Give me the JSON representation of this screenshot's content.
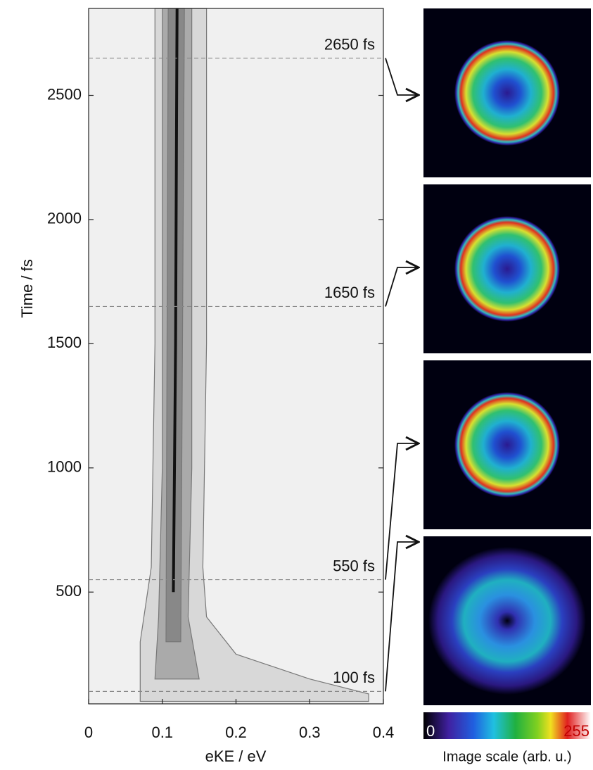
{
  "chart_data": {
    "type": "contour",
    "xlabel": "eKE / eV",
    "ylabel": "Time / fs",
    "xlim": [
      0,
      0.4
    ],
    "xticks": [
      0,
      0.1,
      0.2,
      0.3,
      0.4
    ],
    "ylim": [
      50,
      2850
    ],
    "yticks": [
      500,
      1000,
      1500,
      2000,
      2500
    ],
    "contours": [
      {
        "color": "#d8d8d8",
        "x": [
          0.07,
          0.07,
          0.085,
          0.09,
          0.09,
          0.16,
          0.16,
          0.155,
          0.16,
          0.2,
          0.3,
          0.38,
          0.38
        ],
        "y": [
          60,
          300,
          600,
          1500,
          2850,
          2850,
          1500,
          600,
          400,
          250,
          150,
          90,
          60
        ]
      },
      {
        "color": "#aaaaaa",
        "x": [
          0.09,
          0.095,
          0.1,
          0.1,
          0.14,
          0.14,
          0.135,
          0.15
        ],
        "y": [
          150,
          400,
          1000,
          2850,
          2850,
          1000,
          400,
          150
        ]
      },
      {
        "color": "#888888",
        "x": [
          0.105,
          0.108,
          0.13,
          0.125
        ],
        "y": [
          300,
          2850,
          2850,
          300
        ]
      }
    ],
    "ridge": {
      "color": "#111111",
      "x": [
        0.115,
        0.118,
        0.12
      ],
      "y": [
        500,
        1500,
        2850
      ]
    },
    "markers": [
      {
        "value": 2650,
        "label": "2650 fs"
      },
      {
        "value": 1650,
        "label": "1650 fs"
      },
      {
        "value": 550,
        "label": "550 fs"
      },
      {
        "value": 100,
        "label": "100 fs"
      }
    ],
    "colorbar": {
      "min_label": "0",
      "max_label": "255",
      "label": "Image scale (arb. u.)"
    }
  }
}
